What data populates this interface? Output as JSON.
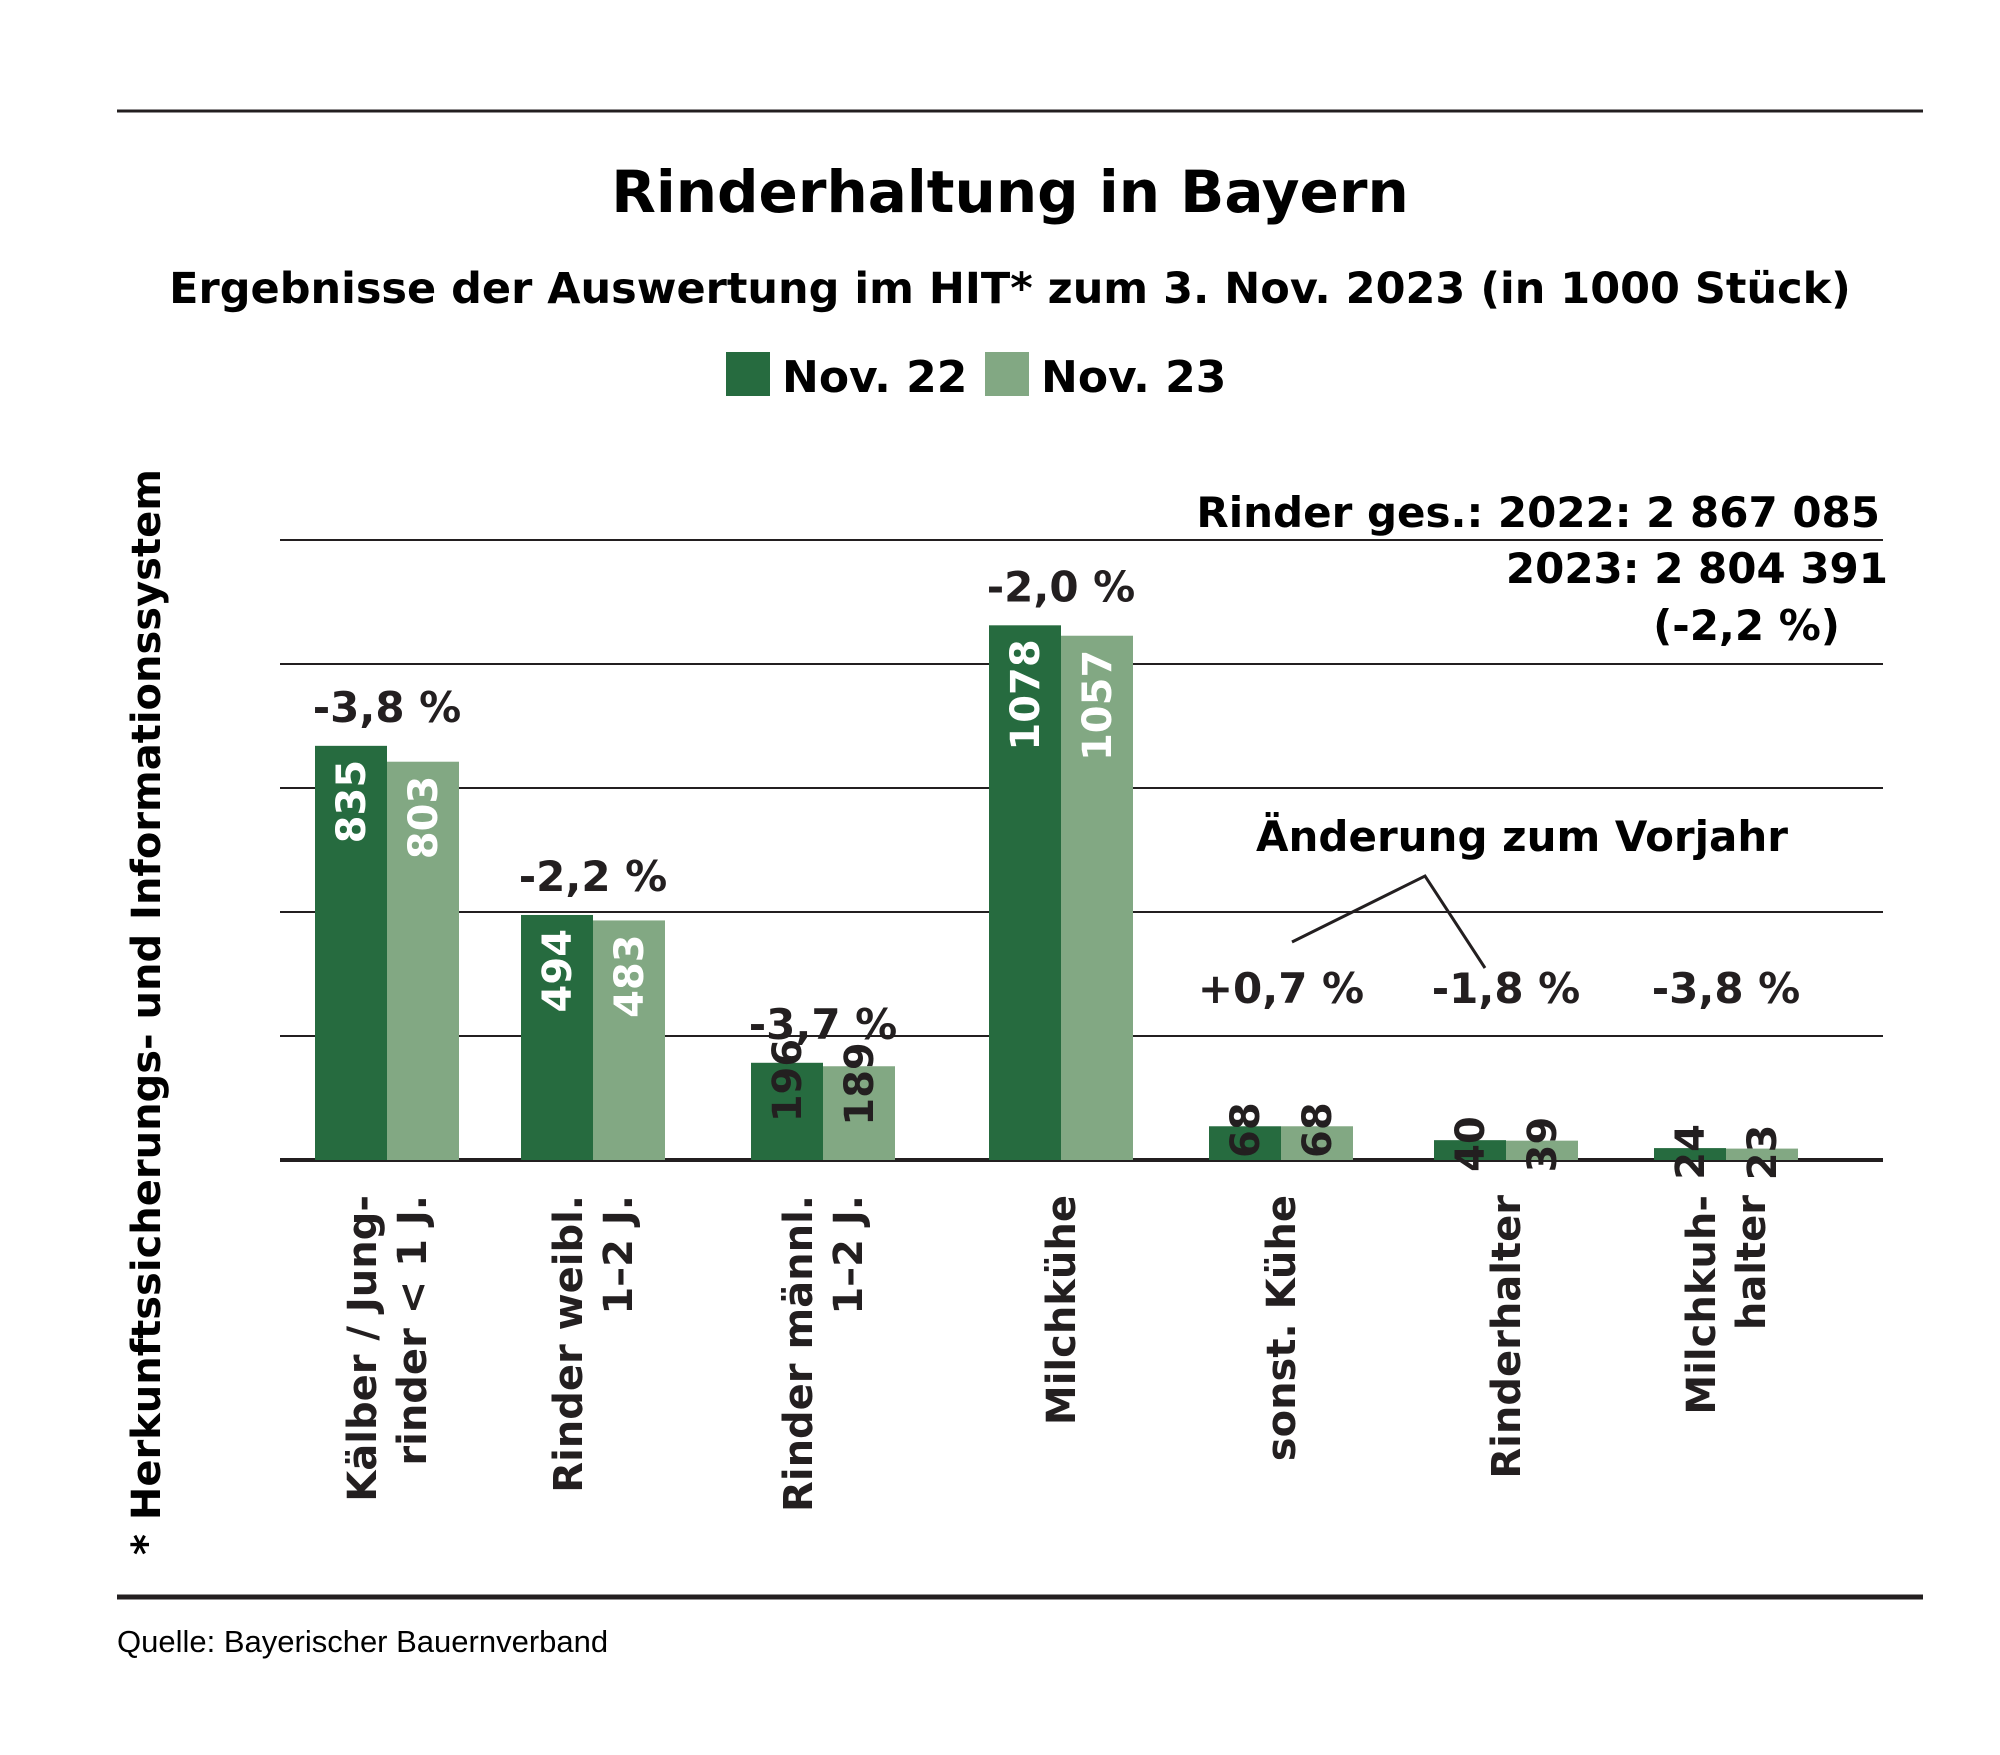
{
  "colors": {
    "nov22": "#266b3f",
    "nov23": "#82a883",
    "ink": "#231f20"
  },
  "chart_data": {
    "type": "bar",
    "title": "Rinderhaltung in Bayern",
    "subtitle": "Ergebnisse der Auswertung im HIT* zum 3. Nov. 2023 (in 1000 Stück)",
    "legend_placement": "top-center",
    "grid": true,
    "ylim": [
      0,
      1250
    ],
    "categories": [
      [
        "Kälber / Jung-",
        "rinder < 1 J."
      ],
      [
        "Rinder weibl.",
        "1–2 J."
      ],
      [
        "Rinder männl.",
        "1–2 J."
      ],
      [
        "Milchkühe"
      ],
      [
        "sonst. Kühe"
      ],
      [
        "Rinderhalter"
      ],
      [
        "Milchkuh-",
        "halter"
      ]
    ],
    "series": [
      {
        "name": "Nov. 22",
        "values": [
          835,
          494,
          196,
          1078,
          68,
          40,
          24
        ]
      },
      {
        "name": "Nov. 23",
        "values": [
          803,
          483,
          189,
          1057,
          68,
          39,
          23
        ]
      }
    ],
    "changes": [
      "-3,8 %",
      "-2,2 %",
      "-3,7 %",
      "-2,0 %",
      "+0,7 %",
      "-1,8 %",
      "-3,8 %"
    ],
    "annotations": {
      "total_line1": "Rinder ges.: 2022: 2 867 085",
      "total_line2": "2023: 2 804 391",
      "total_line3": "(-2,2 %)",
      "change_label": "Änderung zum Vorjahr"
    }
  },
  "footnote": "* Herkunftssicherungs- und Informationssystem",
  "source": "Quelle: Bayerischer Bauernverband"
}
